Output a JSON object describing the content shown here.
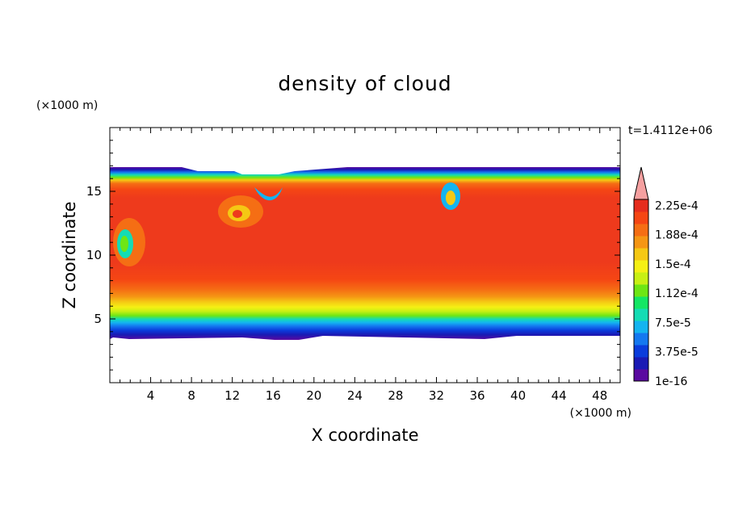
{
  "chart_data": {
    "type": "heatmap",
    "title": "density of cloud",
    "xlabel": "X coordinate",
    "ylabel": "Z coordinate",
    "x_unit": "(×1000 m)",
    "z_unit": "(×1000 m)",
    "time_label": "t=1.4112e+06",
    "xlim": [
      0,
      50
    ],
    "zlim": [
      0,
      20
    ],
    "x_ticks": [
      "4",
      "8",
      "12",
      "16",
      "20",
      "24",
      "28",
      "32",
      "36",
      "40",
      "44",
      "48"
    ],
    "z_ticks": [
      "5",
      "10",
      "15"
    ],
    "colorbar": {
      "labels": [
        "1e-16",
        "3.75e-5",
        "7.5e-5",
        "1.12e-4",
        "1.5e-4",
        "1.88e-4",
        "2.25e-4"
      ],
      "colors": [
        "#5a0aa0",
        "#1a1ab4",
        "#0a3cdc",
        "#1478f0",
        "#14b4f0",
        "#14dcb4",
        "#14e664",
        "#6ee614",
        "#c8f014",
        "#f5f014",
        "#f5c814",
        "#f59614",
        "#f56e14",
        "#f54614",
        "#e62d1e"
      ],
      "extend_color": "#f5a0a0"
    },
    "cloud_layer": {
      "bottom_z": 3.5,
      "top_z": 16.7,
      "core_value": "2.25e-4"
    }
  }
}
